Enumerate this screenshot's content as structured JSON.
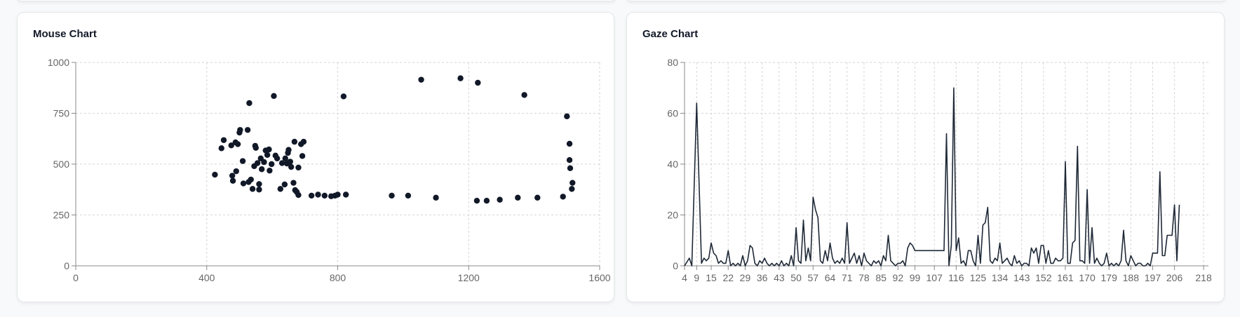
{
  "cards": {
    "mouse": {
      "title": "Mouse Chart"
    },
    "gaze": {
      "title": "Gaze Chart"
    }
  },
  "colors": {
    "mark": "#111827",
    "line": "#1f2937",
    "grid": "#d6d6d6",
    "axis": "#888888",
    "tick_text": "#666666"
  },
  "chart_data": [
    {
      "type": "scatter",
      "title": "Mouse Chart",
      "xlim": [
        0,
        1600
      ],
      "ylim": [
        0,
        1000
      ],
      "xticks": [
        0,
        400,
        800,
        1200,
        1600
      ],
      "yticks": [
        0,
        250,
        500,
        750,
        1000
      ],
      "grid": true,
      "points": [
        [
          425,
          448
        ],
        [
          445,
          578
        ],
        [
          452,
          618
        ],
        [
          475,
          592
        ],
        [
          480,
          418
        ],
        [
          478,
          443
        ],
        [
          490,
          465
        ],
        [
          488,
          607
        ],
        [
          495,
          598
        ],
        [
          500,
          655
        ],
        [
          502,
          668
        ],
        [
          510,
          515
        ],
        [
          512,
          405
        ],
        [
          525,
          668
        ],
        [
          528,
          412
        ],
        [
          530,
          800
        ],
        [
          535,
          424
        ],
        [
          540,
          378
        ],
        [
          545,
          490
        ],
        [
          548,
          590
        ],
        [
          550,
          580
        ],
        [
          555,
          505
        ],
        [
          560,
          375
        ],
        [
          560,
          402
        ],
        [
          565,
          528
        ],
        [
          568,
          475
        ],
        [
          575,
          510
        ],
        [
          580,
          567
        ],
        [
          585,
          545
        ],
        [
          590,
          572
        ],
        [
          592,
          468
        ],
        [
          598,
          500
        ],
        [
          605,
          835
        ],
        [
          610,
          542
        ],
        [
          615,
          528
        ],
        [
          625,
          378
        ],
        [
          630,
          505
        ],
        [
          638,
          400
        ],
        [
          640,
          528
        ],
        [
          645,
          503
        ],
        [
          648,
          555
        ],
        [
          650,
          570
        ],
        [
          655,
          512
        ],
        [
          658,
          486
        ],
        [
          665,
          408
        ],
        [
          668,
          610
        ],
        [
          670,
          372
        ],
        [
          675,
          363
        ],
        [
          680,
          348
        ],
        [
          680,
          483
        ],
        [
          688,
          598
        ],
        [
          692,
          540
        ],
        [
          696,
          610
        ],
        [
          720,
          345
        ],
        [
          740,
          350
        ],
        [
          760,
          345
        ],
        [
          780,
          342
        ],
        [
          792,
          345
        ],
        [
          800,
          350
        ],
        [
          818,
          833
        ],
        [
          825,
          350
        ],
        [
          965,
          345
        ],
        [
          1015,
          345
        ],
        [
          1055,
          915
        ],
        [
          1100,
          335
        ],
        [
          1175,
          922
        ],
        [
          1225,
          320
        ],
        [
          1228,
          900
        ],
        [
          1255,
          320
        ],
        [
          1295,
          325
        ],
        [
          1350,
          335
        ],
        [
          1370,
          840
        ],
        [
          1410,
          335
        ],
        [
          1488,
          340
        ],
        [
          1500,
          735
        ],
        [
          1508,
          600
        ],
        [
          1508,
          520
        ],
        [
          1510,
          480
        ],
        [
          1515,
          378
        ],
        [
          1517,
          408
        ]
      ]
    },
    {
      "type": "line",
      "title": "Gaze Chart",
      "ylim": [
        0,
        80
      ],
      "yticks": [
        0,
        20,
        40,
        60,
        80
      ],
      "x_start": 4,
      "x_end": 220,
      "x_tick_labels": [
        4,
        9,
        15,
        22,
        29,
        36,
        43,
        50,
        57,
        64,
        71,
        78,
        85,
        92,
        99,
        107,
        116,
        125,
        134,
        143,
        152,
        161,
        170,
        179,
        188,
        197,
        206,
        218
      ],
      "grid": true,
      "points": [
        [
          4,
          0
        ],
        [
          6,
          3
        ],
        [
          7,
          0
        ],
        [
          9,
          64
        ],
        [
          11,
          1
        ],
        [
          12,
          3
        ],
        [
          13,
          2
        ],
        [
          14,
          3
        ],
        [
          15,
          9
        ],
        [
          16,
          5
        ],
        [
          17,
          4
        ],
        [
          18,
          1
        ],
        [
          19,
          2
        ],
        [
          20,
          1
        ],
        [
          21,
          1
        ],
        [
          22,
          6
        ],
        [
          23,
          0
        ],
        [
          24,
          1
        ],
        [
          25,
          0
        ],
        [
          26,
          1
        ],
        [
          27,
          0
        ],
        [
          28,
          4
        ],
        [
          29,
          0
        ],
        [
          30,
          2
        ],
        [
          31,
          8
        ],
        [
          32,
          7
        ],
        [
          33,
          1
        ],
        [
          34,
          0
        ],
        [
          35,
          2
        ],
        [
          36,
          1
        ],
        [
          37,
          3
        ],
        [
          38,
          1
        ],
        [
          39,
          0
        ],
        [
          40,
          1
        ],
        [
          41,
          0
        ],
        [
          42,
          1
        ],
        [
          43,
          0
        ],
        [
          44,
          2
        ],
        [
          45,
          0
        ],
        [
          46,
          1
        ],
        [
          47,
          0
        ],
        [
          48,
          4
        ],
        [
          49,
          0
        ],
        [
          50,
          15
        ],
        [
          51,
          2
        ],
        [
          52,
          1
        ],
        [
          53,
          18
        ],
        [
          54,
          2
        ],
        [
          55,
          7
        ],
        [
          56,
          2
        ],
        [
          57,
          27
        ],
        [
          58,
          22
        ],
        [
          59,
          19
        ],
        [
          60,
          2
        ],
        [
          61,
          1
        ],
        [
          62,
          6
        ],
        [
          63,
          2
        ],
        [
          64,
          9
        ],
        [
          65,
          3
        ],
        [
          66,
          1
        ],
        [
          67,
          2
        ],
        [
          68,
          1
        ],
        [
          69,
          3
        ],
        [
          70,
          1
        ],
        [
          71,
          17
        ],
        [
          72,
          1
        ],
        [
          73,
          3
        ],
        [
          74,
          5
        ],
        [
          75,
          1
        ],
        [
          76,
          4
        ],
        [
          77,
          0
        ],
        [
          78,
          5
        ],
        [
          79,
          2
        ],
        [
          80,
          1
        ],
        [
          81,
          0
        ],
        [
          82,
          2
        ],
        [
          83,
          1
        ],
        [
          84,
          2
        ],
        [
          85,
          0
        ],
        [
          86,
          4
        ],
        [
          87,
          2
        ],
        [
          88,
          12
        ],
        [
          89,
          2
        ],
        [
          90,
          1
        ],
        [
          91,
          0
        ],
        [
          92,
          1
        ],
        [
          93,
          1
        ],
        [
          94,
          2
        ],
        [
          95,
          0
        ],
        [
          96,
          7
        ],
        [
          97,
          9
        ],
        [
          98,
          8
        ],
        [
          99,
          6
        ],
        [
          100,
          6
        ],
        [
          101,
          6
        ],
        [
          102,
          6
        ],
        [
          103,
          6
        ],
        [
          104,
          6
        ],
        [
          105,
          6
        ],
        [
          106,
          6
        ],
        [
          107,
          6
        ],
        [
          108,
          6
        ],
        [
          109,
          6
        ],
        [
          110,
          6
        ],
        [
          111,
          6
        ],
        [
          112,
          52
        ],
        [
          113,
          0
        ],
        [
          114,
          8
        ],
        [
          115,
          70
        ],
        [
          116,
          6
        ],
        [
          117,
          11
        ],
        [
          118,
          1
        ],
        [
          119,
          2
        ],
        [
          120,
          0
        ],
        [
          121,
          6
        ],
        [
          122,
          6
        ],
        [
          123,
          2
        ],
        [
          124,
          0
        ],
        [
          125,
          12
        ],
        [
          126,
          1
        ],
        [
          127,
          16
        ],
        [
          128,
          17
        ],
        [
          129,
          23
        ],
        [
          130,
          2
        ],
        [
          131,
          1
        ],
        [
          132,
          3
        ],
        [
          133,
          2
        ],
        [
          134,
          9
        ],
        [
          135,
          1
        ],
        [
          136,
          2
        ],
        [
          137,
          3
        ],
        [
          138,
          1
        ],
        [
          139,
          0
        ],
        [
          140,
          4
        ],
        [
          141,
          1
        ],
        [
          142,
          2
        ],
        [
          143,
          0
        ],
        [
          144,
          1
        ],
        [
          145,
          1
        ],
        [
          146,
          0
        ],
        [
          147,
          7
        ],
        [
          148,
          5
        ],
        [
          149,
          7
        ],
        [
          150,
          1
        ],
        [
          151,
          8
        ],
        [
          152,
          8
        ],
        [
          153,
          1
        ],
        [
          154,
          6
        ],
        [
          155,
          1
        ],
        [
          156,
          1
        ],
        [
          157,
          3
        ],
        [
          158,
          2
        ],
        [
          159,
          2
        ],
        [
          160,
          3
        ],
        [
          161,
          41
        ],
        [
          162,
          1
        ],
        [
          163,
          1
        ],
        [
          164,
          9
        ],
        [
          165,
          10
        ],
        [
          166,
          47
        ],
        [
          167,
          2
        ],
        [
          168,
          2
        ],
        [
          169,
          1
        ],
        [
          170,
          30
        ],
        [
          171,
          1
        ],
        [
          172,
          15
        ],
        [
          173,
          1
        ],
        [
          174,
          3
        ],
        [
          175,
          1
        ],
        [
          176,
          0
        ],
        [
          177,
          1
        ],
        [
          178,
          5
        ],
        [
          179,
          0
        ],
        [
          180,
          1
        ],
        [
          181,
          0
        ],
        [
          182,
          1
        ],
        [
          183,
          0
        ],
        [
          184,
          2
        ],
        [
          185,
          14
        ],
        [
          186,
          2
        ],
        [
          187,
          0
        ],
        [
          188,
          4
        ],
        [
          189,
          2
        ],
        [
          190,
          0
        ],
        [
          191,
          1
        ],
        [
          192,
          1
        ],
        [
          193,
          0
        ],
        [
          194,
          0
        ],
        [
          195,
          1
        ],
        [
          196,
          0
        ],
        [
          197,
          5
        ],
        [
          198,
          5
        ],
        [
          199,
          5
        ],
        [
          200,
          37
        ],
        [
          201,
          4
        ],
        [
          202,
          4
        ],
        [
          203,
          12
        ],
        [
          204,
          12
        ],
        [
          205,
          12
        ],
        [
          206,
          24
        ],
        [
          207,
          2
        ],
        [
          208,
          24
        ]
      ]
    }
  ]
}
